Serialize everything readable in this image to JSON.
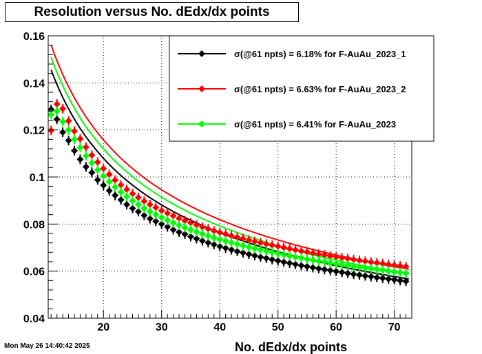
{
  "chart_data": {
    "type": "scatter",
    "title": "Resolution versus No. dEdx/dx points",
    "xlabel": "No. dEdx/dx points",
    "ylabel": "",
    "xlim": [
      10.5,
      73
    ],
    "ylim": [
      0.04,
      0.16
    ],
    "xticks": [
      20,
      30,
      40,
      50,
      60,
      70
    ],
    "yticks": [
      0.04,
      0.06,
      0.08,
      0.1,
      0.12,
      0.14,
      0.16
    ],
    "grid": true,
    "legend_position": "top-right",
    "fit_model": "a / sqrt(n)",
    "series": [
      {
        "name": "σ(@61 npts) =  6.18% for F-AuAu_2023_1",
        "color": "#000000",
        "fit": {
          "a": 0.4827,
          "x_range": [
            11,
            72.5
          ]
        },
        "x": [
          11,
          12,
          13,
          14,
          15,
          16,
          17,
          18,
          19,
          20,
          21,
          22,
          23,
          24,
          25,
          26,
          27,
          28,
          29,
          30,
          31,
          32,
          33,
          34,
          35,
          36,
          37,
          38,
          39,
          40,
          41,
          42,
          43,
          44,
          45,
          46,
          47,
          48,
          49,
          50,
          51,
          52,
          53,
          54,
          55,
          56,
          57,
          58,
          59,
          60,
          61,
          62,
          63,
          64,
          65,
          66,
          67,
          68,
          69,
          70,
          71,
          72
        ],
        "y": [
          0.1287,
          0.1245,
          0.119,
          0.1155,
          0.1112,
          0.1075,
          0.1043,
          0.1019,
          0.0988,
          0.0965,
          0.0942,
          0.0922,
          0.0903,
          0.0883,
          0.0867,
          0.0853,
          0.0837,
          0.0823,
          0.0812,
          0.08,
          0.0788,
          0.0776,
          0.0766,
          0.0757,
          0.0747,
          0.0738,
          0.0729,
          0.0721,
          0.0713,
          0.0705,
          0.0698,
          0.0691,
          0.0684,
          0.0678,
          0.0672,
          0.0666,
          0.066,
          0.0655,
          0.0649,
          0.0644,
          0.0639,
          0.0634,
          0.0629,
          0.0624,
          0.062,
          0.0615,
          0.0611,
          0.0607,
          0.0603,
          0.0599,
          0.0595,
          0.0591,
          0.0587,
          0.0584,
          0.058,
          0.0577,
          0.0573,
          0.057,
          0.0567,
          0.0564,
          0.056,
          0.0557
        ]
      },
      {
        "name": "σ(@61 npts) =  6.63% for F-AuAu_2023_2",
        "color": "#ff0000",
        "fit": {
          "a": 0.5178,
          "x_range": [
            11,
            72.5
          ]
        },
        "x": [
          11,
          12,
          13,
          14,
          15,
          16,
          17,
          18,
          19,
          20,
          21,
          22,
          23,
          24,
          25,
          26,
          27,
          28,
          29,
          30,
          31,
          32,
          33,
          34,
          35,
          36,
          37,
          38,
          39,
          40,
          41,
          42,
          43,
          44,
          45,
          46,
          47,
          48,
          49,
          50,
          51,
          52,
          53,
          54,
          55,
          56,
          57,
          58,
          59,
          60,
          61,
          62,
          63,
          64,
          65,
          66,
          67,
          68,
          69,
          70,
          71,
          72
        ],
        "y": [
          0.1198,
          0.131,
          0.129,
          0.1238,
          0.1195,
          0.1162,
          0.1127,
          0.1093,
          0.1063,
          0.1036,
          0.1011,
          0.0987,
          0.0966,
          0.0947,
          0.0929,
          0.0913,
          0.0897,
          0.0883,
          0.087,
          0.0857,
          0.0846,
          0.0835,
          0.0824,
          0.0814,
          0.0805,
          0.0796,
          0.0787,
          0.0779,
          0.0771,
          0.0764,
          0.0757,
          0.075,
          0.0744,
          0.0738,
          0.0732,
          0.0726,
          0.072,
          0.0715,
          0.071,
          0.0705,
          0.07,
          0.0695,
          0.069,
          0.0685,
          0.0681,
          0.0676,
          0.0672,
          0.0668,
          0.0664,
          0.066,
          0.0656,
          0.0653,
          0.0649,
          0.0645,
          0.0642,
          0.0638,
          0.0635,
          0.0632,
          0.0628,
          0.0625,
          0.0622,
          0.0619
        ]
      },
      {
        "name": "σ(@61 npts) =  6.41% for F-AuAu_2023",
        "color": "#00ff00",
        "fit": {
          "a": 0.5006,
          "x_range": [
            11,
            72.5
          ]
        },
        "x": [
          11,
          12,
          13,
          14,
          15,
          16,
          17,
          18,
          19,
          20,
          21,
          22,
          23,
          24,
          25,
          26,
          27,
          28,
          29,
          30,
          31,
          32,
          33,
          34,
          35,
          36,
          37,
          38,
          39,
          40,
          41,
          42,
          43,
          44,
          45,
          46,
          47,
          48,
          49,
          50,
          51,
          52,
          53,
          54,
          55,
          56,
          57,
          58,
          59,
          60,
          61,
          62,
          63,
          64,
          65,
          66,
          67,
          68,
          69,
          70,
          71,
          72
        ],
        "y": [
          0.1265,
          0.128,
          0.1235,
          0.12,
          0.116,
          0.1125,
          0.109,
          0.106,
          0.103,
          0.1004,
          0.098,
          0.0957,
          0.0936,
          0.0917,
          0.0899,
          0.0883,
          0.0867,
          0.0853,
          0.084,
          0.0828,
          0.0816,
          0.0805,
          0.0795,
          0.0785,
          0.0776,
          0.0767,
          0.0758,
          0.075,
          0.0742,
          0.0735,
          0.0728,
          0.0721,
          0.0715,
          0.0708,
          0.0702,
          0.0696,
          0.0691,
          0.0685,
          0.068,
          0.0675,
          0.067,
          0.0665,
          0.066,
          0.0656,
          0.0651,
          0.0647,
          0.0643,
          0.0639,
          0.0635,
          0.0631,
          0.0628,
          0.0624,
          0.062,
          0.0617,
          0.0613,
          0.061,
          0.0607,
          0.0604,
          0.06,
          0.0597,
          0.0594,
          0.0591
        ]
      }
    ]
  },
  "canvas": {
    "title": "Resolution versus No. dEdx/dx points",
    "timestamp": "Mon May 26 14:40:42 2025"
  }
}
